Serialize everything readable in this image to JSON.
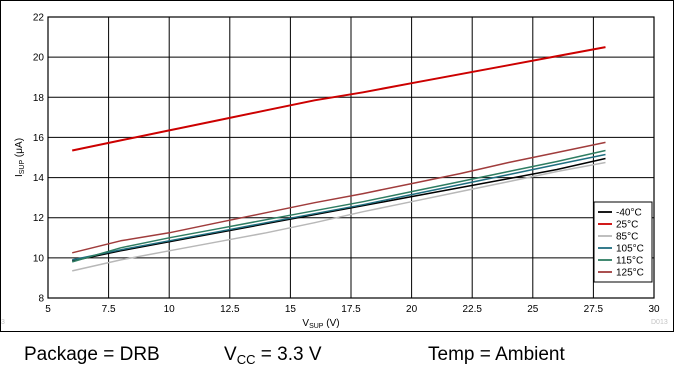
{
  "chart_data": {
    "type": "line",
    "title": "",
    "xlabel": {
      "main": "V",
      "sub": "SUP",
      "unit": " (V)"
    },
    "ylabel": {
      "main": "I",
      "sub": "SUP",
      "unit": " (μA)"
    },
    "xlim": [
      5,
      30
    ],
    "ylim": [
      8,
      22
    ],
    "xticks": [
      5,
      7.5,
      10,
      12.5,
      15,
      17.5,
      20,
      22.5,
      25,
      27.5,
      30
    ],
    "xtick_labels": [
      "5",
      "7.5",
      "10",
      "12.5",
      "15",
      "17.5",
      "20",
      "22.5",
      "25",
      "27.5",
      "30"
    ],
    "yticks": [
      8,
      10,
      12,
      14,
      16,
      18,
      20,
      22
    ],
    "ytick_labels": [
      "8",
      "10",
      "12",
      "14",
      "16",
      "18",
      "20",
      "22"
    ],
    "grid": true,
    "legend_position": "bottom-right",
    "x": [
      6,
      8,
      10,
      12,
      14,
      16,
      18,
      20,
      22,
      24,
      26,
      28
    ],
    "series": [
      {
        "name": "-40°C",
        "color": "#000000",
        "values": [
          9.85,
          10.35,
          10.8,
          11.25,
          11.7,
          12.15,
          12.6,
          13.05,
          13.5,
          13.95,
          14.4,
          14.95
        ]
      },
      {
        "name": "25°C",
        "color": "#cc0000",
        "values": [
          15.35,
          15.85,
          16.35,
          16.85,
          17.35,
          17.85,
          18.25,
          18.7,
          19.15,
          19.6,
          20.05,
          20.5
        ]
      },
      {
        "name": "85°C",
        "color": "#b8b8b8",
        "values": [
          9.35,
          9.9,
          10.35,
          10.8,
          11.25,
          11.75,
          12.3,
          12.8,
          13.3,
          13.8,
          14.3,
          14.75
        ]
      },
      {
        "name": "105°C",
        "color": "#1f6e80",
        "values": [
          9.9,
          10.4,
          10.85,
          11.3,
          11.75,
          12.2,
          12.65,
          13.15,
          13.65,
          14.15,
          14.65,
          15.15
        ]
      },
      {
        "name": "115°C",
        "color": "#2e7d62",
        "values": [
          9.8,
          10.5,
          11.0,
          11.45,
          11.9,
          12.35,
          12.8,
          13.3,
          13.8,
          14.3,
          14.8,
          15.35
        ]
      },
      {
        "name": "125°C",
        "color": "#a03c3c",
        "values": [
          10.25,
          10.85,
          11.25,
          11.75,
          12.25,
          12.75,
          13.2,
          13.7,
          14.2,
          14.75,
          15.25,
          15.75
        ]
      }
    ],
    "watermark": "D013",
    "left_edge_mark": "3"
  },
  "caption": {
    "package": "Package = DRB",
    "vcc_main": "V",
    "vcc_sub": "CC",
    "vcc_value": " = 3.3 V",
    "temp": "Temp = Ambient"
  }
}
